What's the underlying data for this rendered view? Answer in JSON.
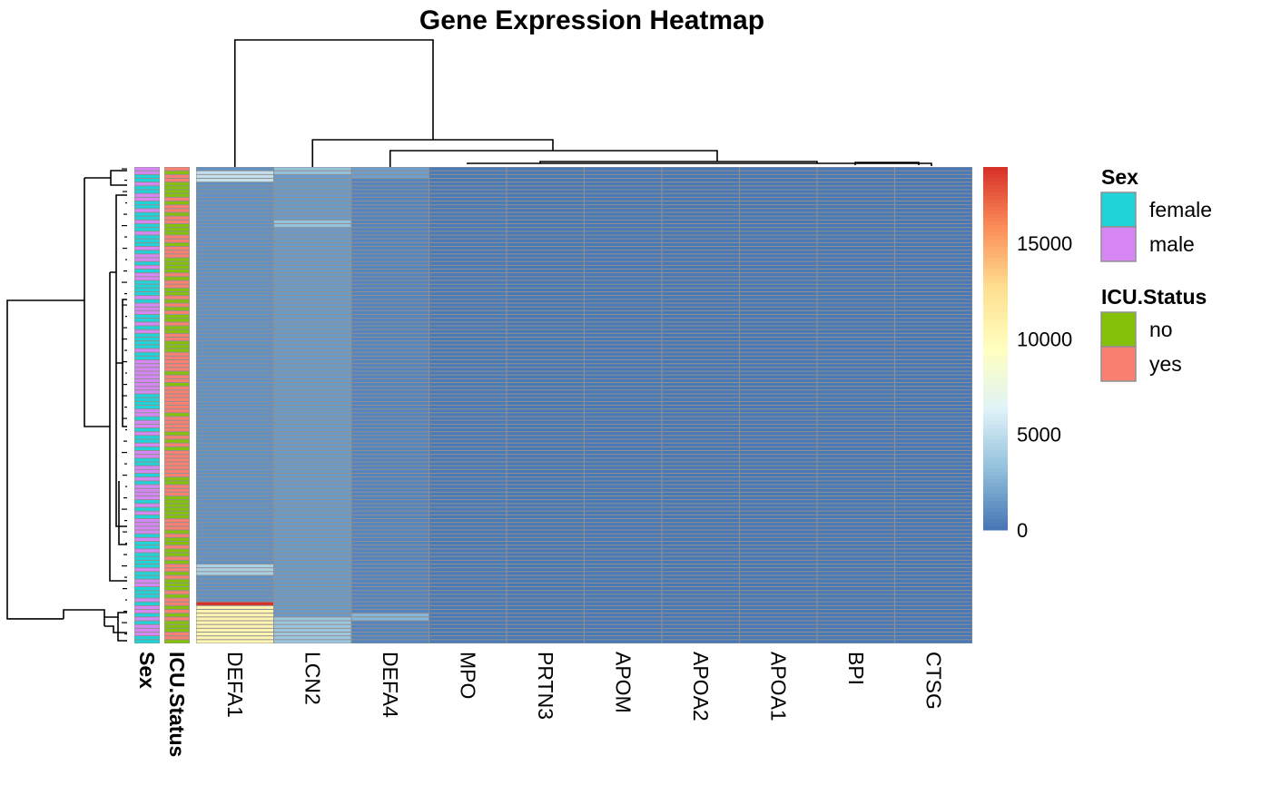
{
  "chart_data": {
    "type": "heatmap",
    "title": "Gene Expression Heatmap",
    "columns": [
      "DEFA1",
      "LCN2",
      "DEFA4",
      "MPO",
      "PRTN3",
      "APOM",
      "APOA2",
      "APOA1",
      "BPI",
      "CTSG"
    ],
    "annotation_columns": [
      "Sex",
      "ICU.Status"
    ],
    "n_rows": 126,
    "value_range": [
      0,
      19000
    ],
    "color_scale": {
      "ticks": [
        0,
        5000,
        10000,
        15000
      ],
      "tick_labels": [
        "0",
        "5000",
        "10000",
        "15000"
      ],
      "colors": [
        "#4575B4",
        "#91BFDB",
        "#E0F3F8",
        "#FFFFBF",
        "#FEE090",
        "#FC8D59",
        "#D73027"
      ]
    },
    "column_typical_values": {
      "DEFA1": 1200,
      "LCN2": 1600,
      "DEFA4": 700,
      "MPO": 250,
      "PRTN3": 200,
      "APOM": 150,
      "APOA2": 120,
      "APOA1": 130,
      "BPI": 180,
      "CTSG": 140
    },
    "notable_cells": [
      {
        "column": "DEFA1",
        "rows": [
          1,
          2,
          3
        ],
        "value": 5200
      },
      {
        "column": "DEFA1",
        "rows": [
          105,
          106,
          107
        ],
        "value": 4200
      },
      {
        "column": "DEFA1",
        "rows": [
          115
        ],
        "value": 19000
      },
      {
        "column": "DEFA1",
        "rows": [
          116,
          117,
          118,
          119,
          120,
          121,
          122,
          123,
          124,
          125
        ],
        "value": 10500
      },
      {
        "column": "LCN2",
        "rows": [
          0,
          1,
          14,
          15
        ],
        "value": 3300
      },
      {
        "column": "LCN2",
        "rows": [
          119,
          120,
          121,
          122,
          123,
          124,
          125
        ],
        "value": 3600
      },
      {
        "column": "DEFA4",
        "rows": [
          0,
          1,
          2
        ],
        "value": 1700
      },
      {
        "column": "DEFA4",
        "rows": [
          118,
          119
        ],
        "value": 2800
      }
    ],
    "annotation_legend": {
      "Sex": [
        {
          "label": "female",
          "color": "#1FD3D8"
        },
        {
          "label": "male",
          "color": "#D787F5"
        }
      ],
      "ICU.Status": [
        {
          "label": "no",
          "color": "#85C10A"
        },
        {
          "label": "yes",
          "color": "#FA8072"
        }
      ]
    }
  }
}
